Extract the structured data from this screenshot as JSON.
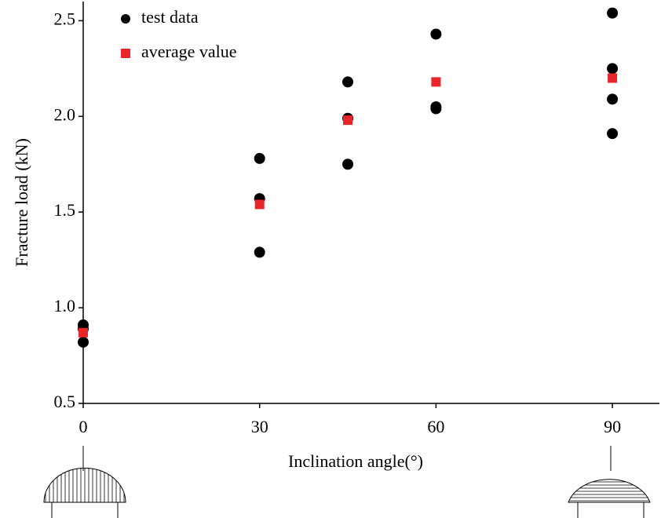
{
  "chart_data": {
    "type": "scatter",
    "x_label": "Inclination angle(°)",
    "y_label": "Fracture load (kN)",
    "xlim": [
      0,
      98
    ],
    "xticks": [
      0,
      30,
      60,
      90
    ],
    "ylim": [
      0.5,
      2.6
    ],
    "yticks": [
      0.5,
      {
        "value": 1,
        "label": "1.0"
      },
      1.5,
      {
        "value": 2,
        "label": "2.0"
      },
      2.5
    ],
    "legend": "top-left",
    "series": [
      {
        "name": "test data",
        "color": "#000000",
        "marker": "circle",
        "x": [
          0,
          0,
          0,
          30,
          30,
          30,
          45,
          45,
          45,
          60,
          60,
          60,
          90,
          90,
          90,
          90
        ],
        "values": [
          0.91,
          0.89,
          0.82,
          1.78,
          1.57,
          1.29,
          2.18,
          1.99,
          1.75,
          2.43,
          2.05,
          2.04,
          2.54,
          2.25,
          2.09,
          1.91
        ]
      },
      {
        "name": "average value",
        "color": "#e8262a",
        "marker": "square",
        "x": [
          0,
          30,
          45,
          60,
          90
        ],
        "values": [
          0.87,
          1.54,
          1.98,
          2.18,
          2.2
        ]
      }
    ]
  }
}
